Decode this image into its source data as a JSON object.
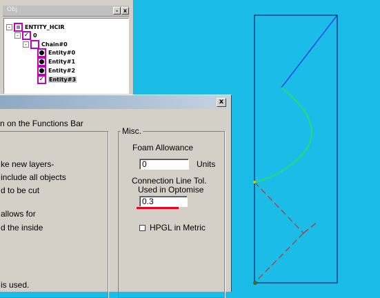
{
  "tree_panel": {
    "title": "Obj",
    "minimize_label": "-",
    "close_label": "x",
    "nodes": [
      {
        "label": "ENTITY_HCIR",
        "expander": "-"
      },
      {
        "label": "0",
        "expander": "-"
      },
      {
        "label": "Chain#0",
        "expander": "-"
      },
      {
        "label": "Entity#0"
      },
      {
        "label": "Entity#1"
      },
      {
        "label": "Entity#2"
      },
      {
        "label": "Entity#3",
        "checkmark": "✓"
      }
    ]
  },
  "dialog": {
    "title": "",
    "close_label": "x",
    "instruction": "n on the Functions Bar",
    "description_lines": [
      "ke new layers-",
      "include all objects",
      "d to be cut",
      "allows for",
      "d the inside",
      "is used."
    ],
    "misc": {
      "legend": "Misc.",
      "foam_allowance_label": "Foam Allowance",
      "foam_allowance_value": "0",
      "units_label": "Units",
      "connection_tol_label_1": "Connection Line Tol.",
      "connection_tol_label_2": "Used in Optomise",
      "connection_tol_value": "0.3",
      "hpgl_metric_label": "HPGL in Metric",
      "hpgl_metric_checked": false
    }
  },
  "canvas": {
    "background_color": "#1bbde8",
    "outline_color": "#1c2a6e",
    "line_color": "#1030e8",
    "arc_color": "#20e070",
    "dashed_color": "#c03020"
  }
}
